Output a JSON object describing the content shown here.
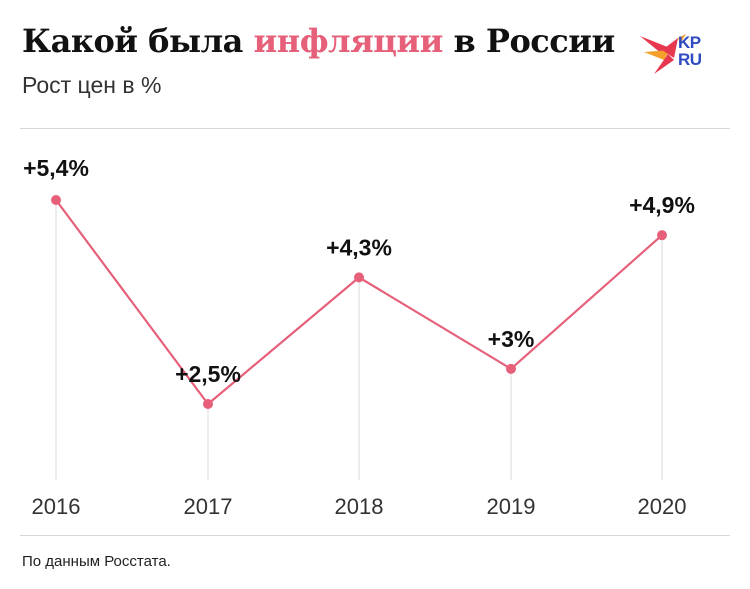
{
  "header": {
    "title_pre": "Какой была ",
    "title_accent": "инфляции",
    "title_post": " в России",
    "subtitle": "Рост цен в %"
  },
  "logo": {
    "line1": "KP",
    "line2": "RU"
  },
  "footer": {
    "source": "По данным Росстата."
  },
  "colors": {
    "accent": "#e6607a",
    "line": "#e6607a",
    "marker": "#e6607a",
    "dropline": "#d9d9d9",
    "logo_blue": "#2f4bbf",
    "logo_red": "#e8384f",
    "logo_orange": "#f4a02a"
  },
  "chart_data": {
    "type": "line",
    "categories": [
      "2016",
      "2017",
      "2018",
      "2019",
      "2020"
    ],
    "values": [
      5.4,
      2.5,
      4.3,
      3.0,
      4.9
    ],
    "data_labels": [
      "+5,4%",
      "+2,5%",
      "+4,3%",
      "+3%",
      "+4,9%"
    ],
    "title": "Какой была инфляции в России",
    "subtitle": "Рост цен в %",
    "xlabel": "",
    "ylabel": "",
    "ylim": [
      1.0,
      5.6
    ],
    "grid": false,
    "legend": "none"
  }
}
